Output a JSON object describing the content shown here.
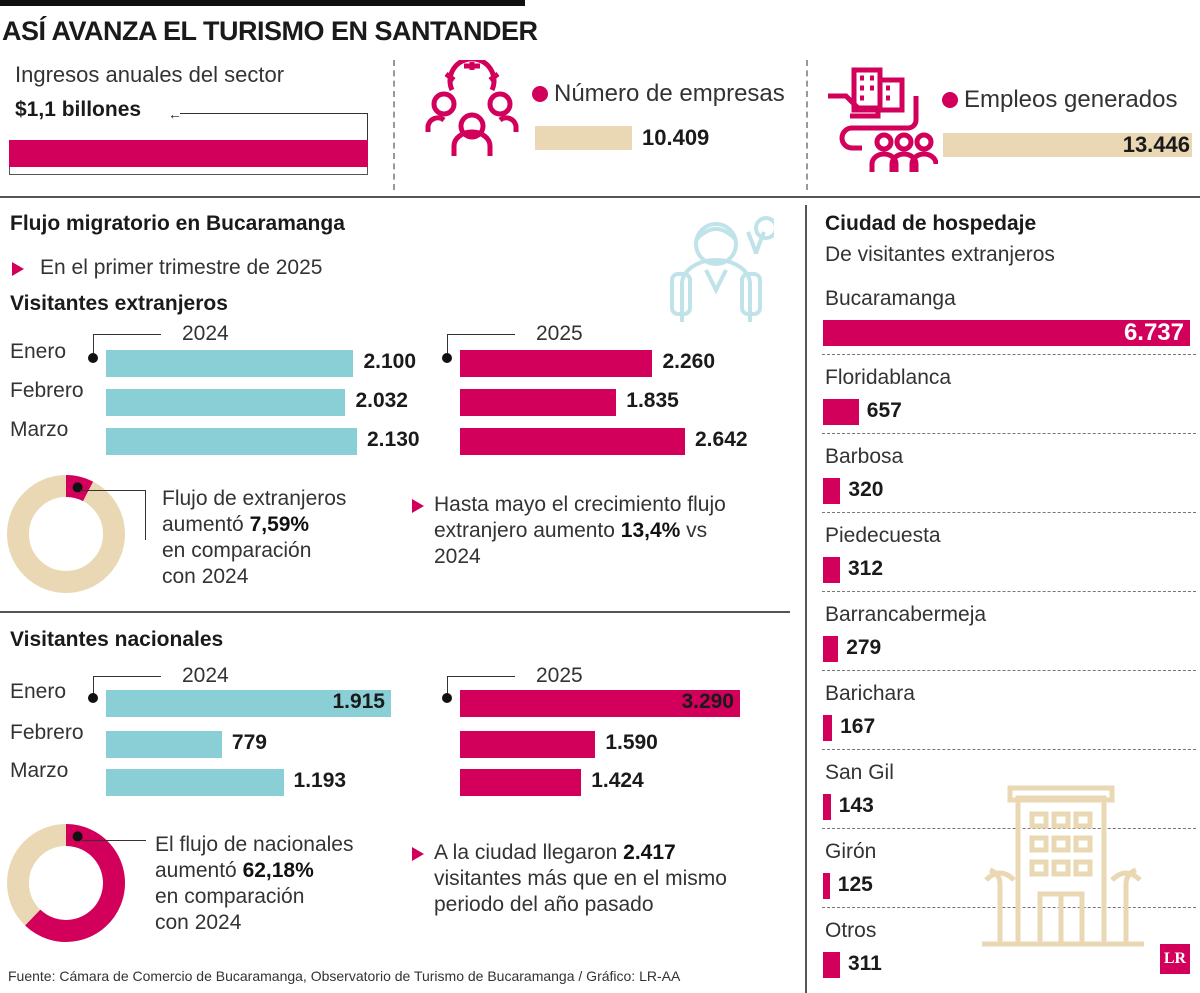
{
  "colors": {
    "magenta": "#d2005a",
    "cyan": "#8bcfd6",
    "beige": "#ead8b4"
  },
  "title": "ASÍ AVANZA EL TURISMO EN SANTANDER",
  "kpis": {
    "ingresos": {
      "label": "Ingresos anuales del sector",
      "value": "$1,1 billones"
    },
    "empresas": {
      "label": "Número de empresas",
      "value": "10.409",
      "icon": "people-gear-icon"
    },
    "empleos": {
      "label": "Empleos generados",
      "value": "13.446",
      "icon": "hand-building-people-icon"
    }
  },
  "flujo": {
    "title": "Flujo migratorio en Bucaramanga",
    "subtitle": "En el primer trimestre de 2025"
  },
  "chart_data": [
    {
      "type": "bar",
      "title": "Visitantes extranjeros",
      "categories": [
        "Enero",
        "Febrero",
        "Marzo"
      ],
      "series": [
        {
          "name": "2024",
          "values": [
            2100,
            2032,
            2130
          ],
          "labels": [
            "2.100",
            "2.032",
            "2.130"
          ]
        },
        {
          "name": "2025",
          "values": [
            2260,
            1835,
            2642
          ],
          "labels": [
            "2.260",
            "1.835",
            "2.642"
          ]
        }
      ]
    },
    {
      "type": "pie",
      "title": "",
      "values": [
        7.59,
        92.41
      ],
      "note": [
        "Flujo de extranjeros",
        "aumentó ",
        "7,59%",
        "en comparación",
        "con 2024"
      ]
    },
    {
      "type": "bar",
      "title": "Visitantes nacionales",
      "categories": [
        "Enero",
        "Febrero",
        "Marzo"
      ],
      "series": [
        {
          "name": "2024",
          "values": [
            1915,
            779,
            1193
          ],
          "labels": [
            "1.915",
            "779",
            "1.193"
          ]
        },
        {
          "name": "2025",
          "values": [
            3290,
            1590,
            1424
          ],
          "labels": [
            "3.290",
            "1.590",
            "1.424"
          ]
        }
      ]
    },
    {
      "type": "pie",
      "title": "",
      "values": [
        62.18,
        37.82
      ],
      "note": [
        "El flujo de nacionales",
        "aumentó ",
        "62,18%",
        "en comparación",
        "con 2024"
      ]
    },
    {
      "type": "bar",
      "title": "Ciudad de hospedaje",
      "subtitle": "De visitantes extranjeros",
      "categories": [
        "Bucaramanga",
        "Floridablanca",
        "Barbosa",
        "Piedecuesta",
        "Barrancabermeja",
        "Barichara",
        "San Gil",
        "Girón",
        "Otros"
      ],
      "values": [
        6737,
        657,
        320,
        312,
        279,
        167,
        143,
        125,
        311
      ],
      "labels": [
        "6.737",
        "657",
        "320",
        "312",
        "279",
        "167",
        "143",
        "125",
        "311"
      ]
    }
  ],
  "notes": {
    "ext": {
      "l1": "Hasta mayo el crecimiento flujo",
      "l2a": "extranjero aumento ",
      "l2b": "13,4%",
      "l2c": " vs",
      "l3": "2024"
    },
    "nac": {
      "l1a": "A la ciudad llegaron ",
      "l1b": "2.417",
      "l2": "visitantes más que en el mismo",
      "l3": "periodo del año pasado"
    }
  },
  "source": "Fuente: Cámara de Comercio de Bucaramanga, Observatorio de Turismo de Bucaramanga / Gráfico: LR-AA",
  "logo": "LR"
}
